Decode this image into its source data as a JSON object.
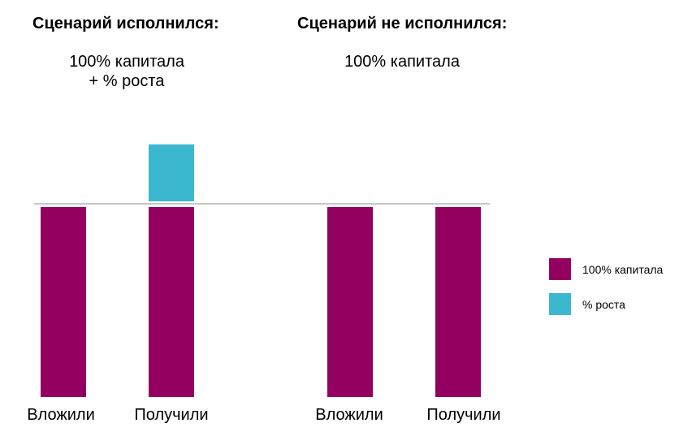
{
  "chart_data": {
    "type": "bar",
    "stacked": true,
    "groups": [
      {
        "title": "Сценарий исполнился:",
        "subtitle": [
          "100% капитала",
          "+ % роста"
        ],
        "categories": [
          "Вложили",
          "Получили"
        ],
        "series": [
          {
            "name": "100% капитала",
            "values": [
              100,
              100
            ]
          },
          {
            "name": "% роста",
            "values": [
              0,
              30
            ]
          }
        ]
      },
      {
        "title": "Сценарий не исполнился:",
        "subtitle": [
          "100% капитала"
        ],
        "categories": [
          "Вложили",
          "Получили"
        ],
        "series": [
          {
            "name": "100% капитала",
            "values": [
              100,
              100
            ]
          },
          {
            "name": "% роста",
            "values": [
              0,
              0
            ]
          }
        ]
      }
    ],
    "reference_line": 100,
    "ylim": [
      0,
      135
    ],
    "legend": {
      "placement": "right",
      "items": [
        {
          "label": "100% капитала",
          "color": "#940060"
        },
        {
          "label": "% роста",
          "color": "#3bb8d0"
        }
      ]
    },
    "colors": {
      "capital": "#940060",
      "growth": "#3bb8d0",
      "reference_line": "#b3b3b3"
    }
  }
}
